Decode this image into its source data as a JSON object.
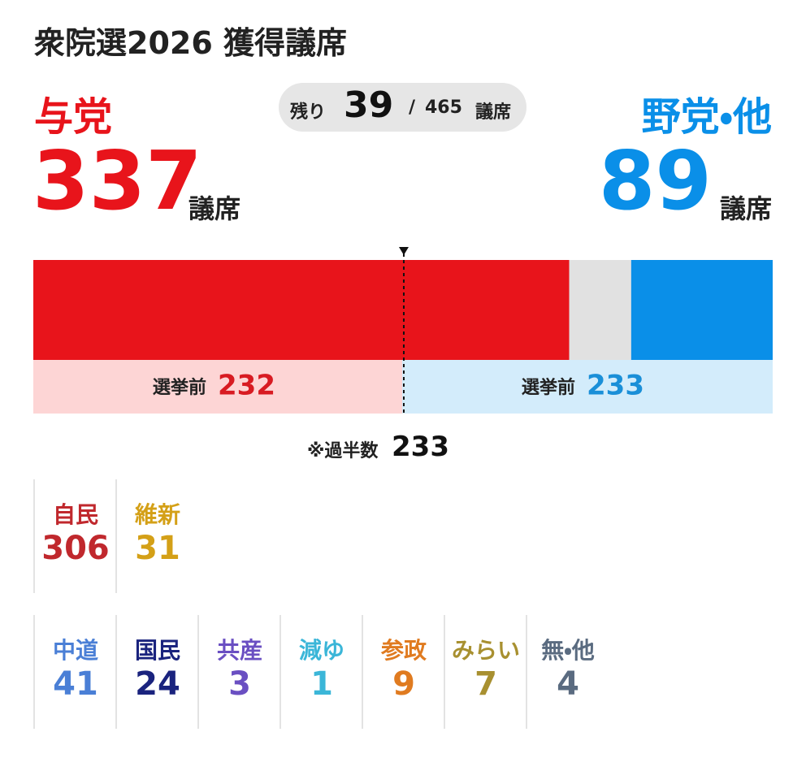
{
  "title": "衆院選2026 獲得議席",
  "ruling": {
    "name": "与党",
    "seats": 337,
    "unit": "議席",
    "color": "#e8141b",
    "before_label": "選挙前",
    "before": 232,
    "before_color": "#fdd5d5",
    "before_text_color": "#d81b22"
  },
  "remaining": {
    "label": "残り",
    "seats": 39,
    "separator": "/",
    "total": 465,
    "unit": "議席",
    "color": "#e1e1e1"
  },
  "opposition": {
    "name": "野党・他",
    "seats": 89,
    "unit": "議席",
    "color": "#0a8fe8",
    "before_label": "選挙前",
    "before": 233,
    "before_color": "#d3ecfb",
    "before_text_color": "#1a8fd8"
  },
  "majority": {
    "label": "※過半数",
    "seats": 233
  },
  "party_rows": [
    [
      {
        "name": "自民",
        "seats": 306,
        "color": "#c0282d"
      },
      {
        "name": "維新",
        "seats": 31,
        "color": "#d4a017"
      }
    ],
    [
      {
        "name": "中道",
        "seats": 41,
        "color": "#4a7fd6"
      },
      {
        "name": "国民",
        "seats": 24,
        "color": "#1a237e"
      },
      {
        "name": "共産",
        "seats": 3,
        "color": "#6a4fc2"
      },
      {
        "name": "減ゆ",
        "seats": 1,
        "color": "#3bb6d8"
      },
      {
        "name": "参政",
        "seats": 9,
        "color": "#e07b20"
      },
      {
        "name": "みらい",
        "seats": 7,
        "color": "#a89030"
      },
      {
        "name": "無・他",
        "seats": 4,
        "color": "#5a6b80"
      }
    ]
  ]
}
